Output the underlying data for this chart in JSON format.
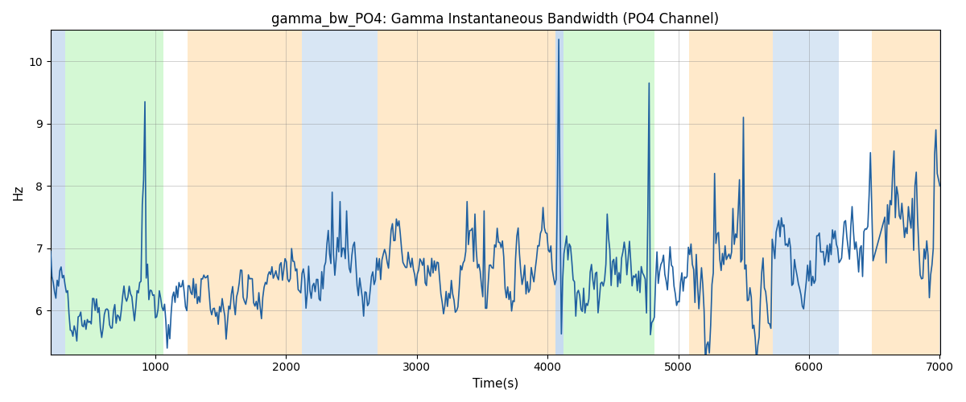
{
  "title": "gamma_bw_PO4: Gamma Instantaneous Bandwidth (PO4 Channel)",
  "xlabel": "Time(s)",
  "ylabel": "Hz",
  "xlim": [
    200,
    7000
  ],
  "ylim": [
    5.3,
    10.5
  ],
  "yticks": [
    6,
    7,
    8,
    9,
    10
  ],
  "xticks": [
    1000,
    2000,
    3000,
    4000,
    5000,
    6000,
    7000
  ],
  "line_color": "#2060a0",
  "line_width": 1.2,
  "bg_color": "#ffffff",
  "bands": [
    {
      "start": 200,
      "end": 310,
      "color": "#aac8e8",
      "alpha": 0.55
    },
    {
      "start": 310,
      "end": 1060,
      "color": "#90ee90",
      "alpha": 0.38
    },
    {
      "start": 1060,
      "end": 1250,
      "color": "#aac8e8",
      "alpha": 0.0
    },
    {
      "start": 1250,
      "end": 2120,
      "color": "#ffd8a0",
      "alpha": 0.55
    },
    {
      "start": 2120,
      "end": 2700,
      "color": "#aac8e8",
      "alpha": 0.45
    },
    {
      "start": 2700,
      "end": 4060,
      "color": "#ffd8a0",
      "alpha": 0.55
    },
    {
      "start": 4060,
      "end": 4120,
      "color": "#aac8e8",
      "alpha": 0.65
    },
    {
      "start": 4120,
      "end": 4820,
      "color": "#90ee90",
      "alpha": 0.38
    },
    {
      "start": 4820,
      "end": 5080,
      "color": "#aac8e8",
      "alpha": 0.0
    },
    {
      "start": 5080,
      "end": 5720,
      "color": "#ffd8a0",
      "alpha": 0.55
    },
    {
      "start": 5720,
      "end": 6230,
      "color": "#aac8e8",
      "alpha": 0.45
    },
    {
      "start": 6230,
      "end": 6480,
      "color": "#aac8e8",
      "alpha": 0.0
    },
    {
      "start": 6480,
      "end": 7000,
      "color": "#ffd8a0",
      "alpha": 0.55
    }
  ],
  "seed": 42,
  "n_points": 680
}
